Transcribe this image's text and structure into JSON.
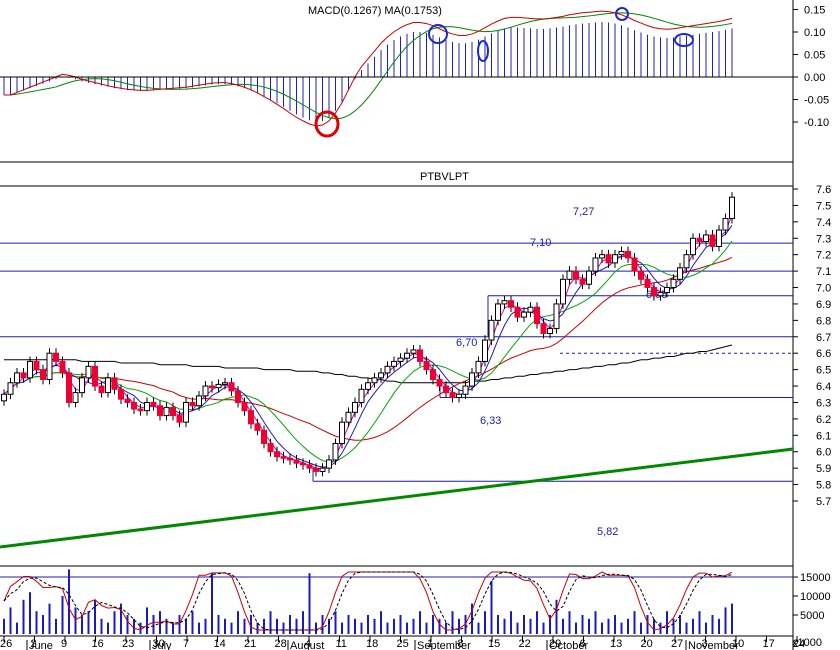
{
  "chart_data": {
    "type": "candlestick",
    "title": "PTBVLPT",
    "macd_header": "MACD(0.1267) MA(0.1753)",
    "x_day_ticks": [
      "26",
      "2",
      "9",
      "16",
      "23",
      "30",
      "7",
      "14",
      "21",
      "28",
      "4",
      "11",
      "18",
      "25",
      "1",
      "8",
      "15",
      "22",
      "29",
      "6",
      "13",
      "20",
      "27",
      "3",
      "10",
      "17",
      "24"
    ],
    "x_month_ticks": [
      "June",
      "July",
      "August",
      "September",
      "October",
      "November"
    ],
    "price_axis": {
      "ticks": [
        "7.6",
        "7.5",
        "7.4",
        "7.3",
        "7.2",
        "7.1",
        "7.0",
        "6.9",
        "6.8",
        "6.7",
        "6.6",
        "6.5",
        "6.4",
        "6.3",
        "6.2",
        "6.1",
        "6.0",
        "5.9",
        "5.8",
        "5.7"
      ],
      "ylim": [
        5.7,
        7.6
      ]
    },
    "macd_axis": {
      "ticks": [
        "0.15",
        "0.10",
        "0.05",
        "0.00",
        "-0.05",
        "-0.10"
      ],
      "ylim": [
        -0.12,
        0.16
      ]
    },
    "volume_axis": {
      "ticks": [
        "15000",
        "10000",
        "5000"
      ],
      "unit": "x1000"
    },
    "levels": [
      {
        "label": "7,27",
        "value": 7.27
      },
      {
        "label": "7,10",
        "value": 7.1
      },
      {
        "label": "6,95",
        "value": 6.95
      },
      {
        "label": "6,70",
        "value": 6.7
      },
      {
        "label": "6,33",
        "value": 6.33
      },
      {
        "label": "5,82",
        "value": 5.82
      }
    ],
    "close": [
      6.35,
      6.42,
      6.48,
      6.45,
      6.55,
      6.5,
      6.44,
      6.6,
      6.55,
      6.48,
      6.3,
      6.36,
      6.45,
      6.52,
      6.4,
      6.36,
      6.45,
      6.38,
      6.32,
      6.3,
      6.26,
      6.25,
      6.3,
      6.28,
      6.22,
      6.27,
      6.22,
      6.18,
      6.3,
      6.28,
      6.34,
      6.4,
      6.39,
      6.41,
      6.42,
      6.37,
      6.3,
      6.25,
      6.17,
      6.13,
      6.05,
      6.0,
      5.97,
      5.96,
      5.95,
      5.93,
      5.92,
      5.9,
      5.88,
      5.9,
      5.95,
      6.05,
      6.18,
      6.24,
      6.3,
      6.38,
      6.42,
      6.45,
      6.48,
      6.52,
      6.55,
      6.57,
      6.6,
      6.62,
      6.55,
      6.5,
      6.44,
      6.4,
      6.36,
      6.33,
      6.35,
      6.4,
      6.48,
      6.55,
      6.68,
      6.8,
      6.9,
      6.92,
      6.88,
      6.82,
      6.85,
      6.88,
      6.78,
      6.72,
      6.75,
      6.9,
      7.05,
      7.1,
      7.05,
      7.02,
      7.1,
      7.18,
      7.2,
      7.15,
      7.2,
      7.22,
      7.18,
      7.1,
      7.05,
      7.0,
      6.95,
      6.97,
      7.0,
      7.05,
      7.12,
      7.2,
      7.3,
      7.28,
      7.32,
      7.25,
      7.35,
      7.42,
      7.55
    ],
    "sma_long": [
      6.56,
      6.56,
      6.56,
      6.56,
      6.56,
      6.56,
      6.56,
      6.56,
      6.56,
      6.56,
      6.56,
      6.56,
      6.55,
      6.55,
      6.55,
      6.55,
      6.55,
      6.55,
      6.54,
      6.54,
      6.54,
      6.54,
      6.54,
      6.54,
      6.53,
      6.53,
      6.53,
      6.53,
      6.53,
      6.52,
      6.52,
      6.52,
      6.52,
      6.52,
      6.51,
      6.51,
      6.51,
      6.51,
      6.51,
      6.51,
      6.5,
      6.5,
      6.5,
      6.5,
      6.5,
      6.49,
      6.49,
      6.49,
      6.49,
      6.48,
      6.48,
      6.47,
      6.47,
      6.46,
      6.46,
      6.45,
      6.45,
      6.44,
      6.44,
      6.43,
      6.43,
      6.42,
      6.42,
      6.42,
      6.42,
      6.42,
      6.42,
      6.42,
      6.42,
      6.42,
      6.42,
      6.42,
      6.43,
      6.43,
      6.43,
      6.44,
      6.44,
      6.45,
      6.45,
      6.46,
      6.46,
      6.47,
      6.47,
      6.48,
      6.48,
      6.49,
      6.49,
      6.5,
      6.5,
      6.51,
      6.51,
      6.52,
      6.52,
      6.53,
      6.53,
      6.54,
      6.54,
      6.55,
      6.56,
      6.56,
      6.57,
      6.57,
      6.58,
      6.58,
      6.59,
      6.6,
      6.6,
      6.61,
      6.61,
      6.62,
      6.63,
      6.64,
      6.65
    ],
    "volume_k": [
      4,
      7,
      3,
      9,
      11,
      6,
      5,
      8,
      4,
      10,
      17,
      7,
      5,
      6,
      9,
      4,
      3,
      6,
      8,
      5,
      4,
      3,
      7,
      5,
      6,
      4,
      3,
      5,
      4,
      6,
      3,
      4,
      16,
      5,
      4,
      3,
      6,
      4,
      5,
      3,
      4,
      6,
      4,
      3,
      5,
      4,
      6,
      16,
      3,
      5,
      4,
      6,
      3,
      5,
      4,
      3,
      5,
      4,
      6,
      3,
      4,
      5,
      3,
      4,
      6,
      3,
      5,
      4,
      3,
      6,
      4,
      5,
      8,
      3,
      6,
      14,
      5,
      4,
      6,
      3,
      5,
      4,
      6,
      3,
      5,
      9,
      4,
      6,
      3,
      5,
      4,
      6,
      3,
      4,
      5,
      3,
      4,
      6,
      3,
      5,
      4,
      3,
      6,
      4,
      5,
      3,
      4,
      6,
      3,
      5,
      4,
      7,
      8
    ],
    "macd_hist": [
      -0.04,
      -0.04,
      -0.035,
      -0.03,
      -0.025,
      -0.02,
      -0.015,
      -0.01,
      -0.005,
      0.0,
      -0.002,
      -0.005,
      -0.01,
      -0.013,
      -0.016,
      -0.019,
      -0.022,
      -0.025,
      -0.027,
      -0.029,
      -0.03,
      -0.031,
      -0.031,
      -0.03,
      -0.029,
      -0.028,
      -0.027,
      -0.026,
      -0.025,
      -0.023,
      -0.021,
      -0.019,
      -0.017,
      -0.016,
      -0.016,
      -0.018,
      -0.021,
      -0.025,
      -0.03,
      -0.036,
      -0.043,
      -0.05,
      -0.058,
      -0.066,
      -0.075,
      -0.083,
      -0.09,
      -0.096,
      -0.1,
      -0.098,
      -0.09,
      -0.075,
      -0.055,
      -0.03,
      -0.005,
      0.015,
      0.03,
      0.045,
      0.06,
      0.072,
      0.082,
      0.09,
      0.096,
      0.1,
      0.1,
      0.098,
      0.094,
      0.088,
      0.082,
      0.078,
      0.075,
      0.075,
      0.078,
      0.083,
      0.09,
      0.097,
      0.103,
      0.108,
      0.11,
      0.11,
      0.109,
      0.108,
      0.107,
      0.107,
      0.108,
      0.11,
      0.112,
      0.115,
      0.117,
      0.119,
      0.12,
      0.121,
      0.122,
      0.121,
      0.119,
      0.115,
      0.11,
      0.104,
      0.099,
      0.094,
      0.09,
      0.088,
      0.087,
      0.088,
      0.09,
      0.092,
      0.094,
      0.096,
      0.098,
      0.1,
      0.102,
      0.105,
      0.108
    ]
  }
}
